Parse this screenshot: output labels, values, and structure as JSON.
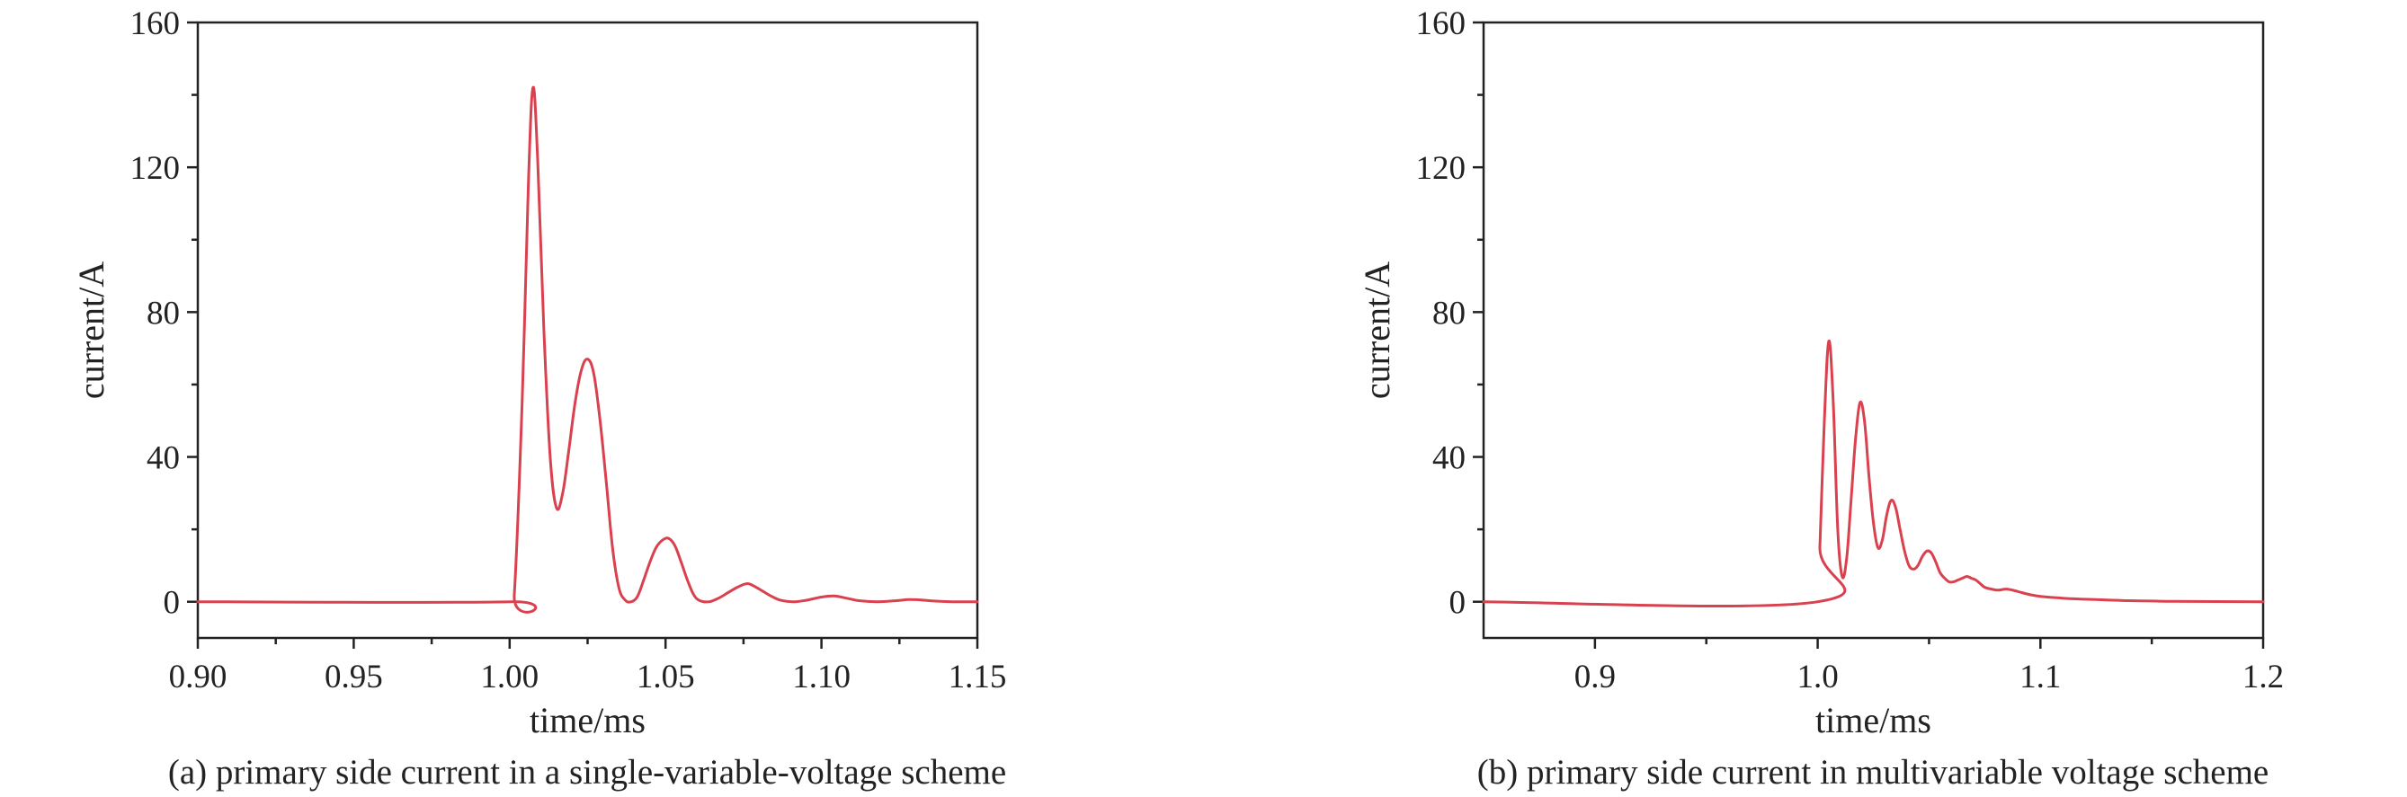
{
  "colors": {
    "curve": "#d9414e",
    "axis": "#222222"
  },
  "chart_data": [
    {
      "type": "line",
      "caption": "(a) primary side current in a single-variable-voltage scheme",
      "xlabel": "time/ms",
      "ylabel": "current/A",
      "xlim": [
        0.9,
        1.15
      ],
      "ylim": [
        -10,
        160
      ],
      "xticks": [
        0.9,
        0.95,
        1.0,
        1.05,
        1.1,
        1.15
      ],
      "xtick_labels": [
        "0.90",
        "0.95",
        "1.00",
        "1.05",
        "1.10",
        "1.15"
      ],
      "yticks": [
        0,
        40,
        80,
        120,
        160
      ],
      "ytick_labels": [
        "0",
        "40",
        "80",
        "120",
        "160"
      ],
      "grid": false,
      "series": [
        {
          "x": [
            0.9,
            1.0,
            1.0015,
            1.004,
            1.006,
            1.0075,
            1.009,
            1.011,
            1.013,
            1.015,
            1.017,
            1.019,
            1.021,
            1.023,
            1.025,
            1.027,
            1.029,
            1.031,
            1.033,
            1.035,
            1.037,
            1.039,
            1.041,
            1.043,
            1.045,
            1.047,
            1.049,
            1.051,
            1.053,
            1.055,
            1.057,
            1.059,
            1.061,
            1.064,
            1.067,
            1.07,
            1.073,
            1.076,
            1.078,
            1.081,
            1.084,
            1.087,
            1.091,
            1.095,
            1.1,
            1.104,
            1.108,
            1.112,
            1.118,
            1.124,
            1.128,
            1.132,
            1.136,
            1.142,
            1.15
          ],
          "y": [
            0,
            0,
            2,
            55,
            115,
            142,
            122,
            75,
            40,
            26,
            30,
            42,
            55,
            64,
            67,
            63,
            50,
            33,
            15,
            4,
            0.5,
            0,
            1.5,
            6,
            11,
            15,
            17,
            17.5,
            15.5,
            11,
            6,
            2,
            0.3,
            0,
            1,
            2.5,
            4,
            5,
            4.5,
            3,
            1.5,
            0.4,
            0,
            0.4,
            1.3,
            1.6,
            1,
            0.3,
            0,
            0.3,
            0.6,
            0.5,
            0.2,
            0,
            0
          ]
        }
      ]
    },
    {
      "type": "line",
      "caption": "(b) primary side current in multivariable voltage scheme",
      "xlabel": "time/ms",
      "ylabel": "current/A",
      "xlim": [
        0.85,
        1.2
      ],
      "ylim": [
        -10,
        160
      ],
      "xticks": [
        0.9,
        1.0,
        1.1,
        1.2
      ],
      "xtick_labels": [
        "0.9",
        "1.0",
        "1.1",
        "1.2"
      ],
      "yticks": [
        0,
        40,
        80,
        120,
        160
      ],
      "ytick_labels": [
        "0",
        "40",
        "80",
        "120",
        "160"
      ],
      "grid": false,
      "series": [
        {
          "x": [
            0.85,
            1.0,
            1.001,
            1.003,
            1.005,
            1.007,
            1.009,
            1.011,
            1.013,
            1.015,
            1.017,
            1.019,
            1.021,
            1.023,
            1.025,
            1.027,
            1.029,
            1.031,
            1.033,
            1.035,
            1.037,
            1.039,
            1.041,
            1.043,
            1.045,
            1.047,
            1.049,
            1.051,
            1.053,
            1.055,
            1.057,
            1.059,
            1.061,
            1.063,
            1.065,
            1.067,
            1.069,
            1.071,
            1.073,
            1.075,
            1.078,
            1.081,
            1.085,
            1.09,
            1.095,
            1.1,
            1.11,
            1.12,
            1.13,
            1.14,
            1.15,
            1.16,
            1.2
          ],
          "y": [
            0,
            0,
            15,
            50,
            72,
            55,
            20,
            7,
            12,
            28,
            45,
            55,
            50,
            35,
            22,
            15,
            17,
            24,
            28,
            26,
            20,
            14,
            10,
            9,
            10,
            12.5,
            14,
            13.5,
            11,
            8,
            6.5,
            5.5,
            5.5,
            6,
            6.5,
            7,
            6.5,
            6,
            5,
            4,
            3.5,
            3.2,
            3.5,
            2.8,
            2,
            1.5,
            1,
            0.7,
            0.5,
            0.3,
            0.2,
            0.1,
            0
          ]
        }
      ]
    }
  ]
}
